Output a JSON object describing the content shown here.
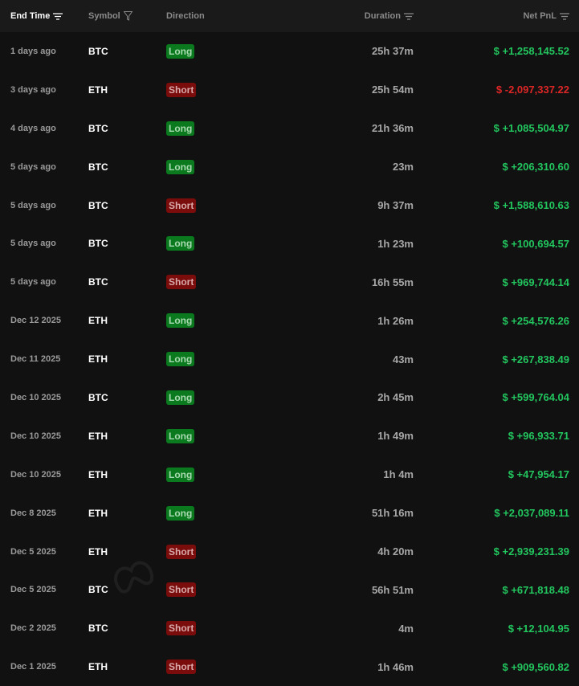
{
  "header": {
    "end_time": "End Time",
    "symbol": "Symbol",
    "direction": "Direction",
    "duration": "Duration",
    "net_pnl": "Net PnL"
  },
  "watermark": "Hyperbot",
  "colors": {
    "positive": "#22c55e",
    "negative": "#dc2626",
    "long_bg": "#0b7a1e",
    "short_bg": "#7a0c0c"
  },
  "rows": [
    {
      "time": "1 days ago",
      "symbol": "BTC",
      "direction": "Long",
      "duration": "25h 37m",
      "pnl": "$ +1,258,145.52"
    },
    {
      "time": "3 days ago",
      "symbol": "ETH",
      "direction": "Short",
      "duration": "25h 54m",
      "pnl": "$ -2,097,337.22"
    },
    {
      "time": "4 days ago",
      "symbol": "BTC",
      "direction": "Long",
      "duration": "21h 36m",
      "pnl": "$ +1,085,504.97"
    },
    {
      "time": "5 days ago",
      "symbol": "BTC",
      "direction": "Long",
      "duration": "23m",
      "pnl": "$ +206,310.60"
    },
    {
      "time": "5 days ago",
      "symbol": "BTC",
      "direction": "Short",
      "duration": "9h 37m",
      "pnl": "$ +1,588,610.63"
    },
    {
      "time": "5 days ago",
      "symbol": "BTC",
      "direction": "Long",
      "duration": "1h 23m",
      "pnl": "$ +100,694.57"
    },
    {
      "time": "5 days ago",
      "symbol": "BTC",
      "direction": "Short",
      "duration": "16h 55m",
      "pnl": "$ +969,744.14"
    },
    {
      "time": "Dec 12 2025",
      "symbol": "ETH",
      "direction": "Long",
      "duration": "1h 26m",
      "pnl": "$ +254,576.26"
    },
    {
      "time": "Dec 11 2025",
      "symbol": "ETH",
      "direction": "Long",
      "duration": "43m",
      "pnl": "$ +267,838.49"
    },
    {
      "time": "Dec 10 2025",
      "symbol": "BTC",
      "direction": "Long",
      "duration": "2h 45m",
      "pnl": "$ +599,764.04"
    },
    {
      "time": "Dec 10 2025",
      "symbol": "ETH",
      "direction": "Long",
      "duration": "1h 49m",
      "pnl": "$ +96,933.71"
    },
    {
      "time": "Dec 10 2025",
      "symbol": "ETH",
      "direction": "Long",
      "duration": "1h 4m",
      "pnl": "$ +47,954.17"
    },
    {
      "time": "Dec 8 2025",
      "symbol": "ETH",
      "direction": "Long",
      "duration": "51h 16m",
      "pnl": "$ +2,037,089.11"
    },
    {
      "time": "Dec 5 2025",
      "symbol": "ETH",
      "direction": "Short",
      "duration": "4h 20m",
      "pnl": "$ +2,939,231.39"
    },
    {
      "time": "Dec 5 2025",
      "symbol": "BTC",
      "direction": "Short",
      "duration": "56h 51m",
      "pnl": "$ +671,818.48"
    },
    {
      "time": "Dec 2 2025",
      "symbol": "BTC",
      "direction": "Short",
      "duration": "4m",
      "pnl": "$ +12,104.95"
    },
    {
      "time": "Dec 1 2025",
      "symbol": "ETH",
      "direction": "Short",
      "duration": "1h 46m",
      "pnl": "$ +909,560.82"
    }
  ]
}
